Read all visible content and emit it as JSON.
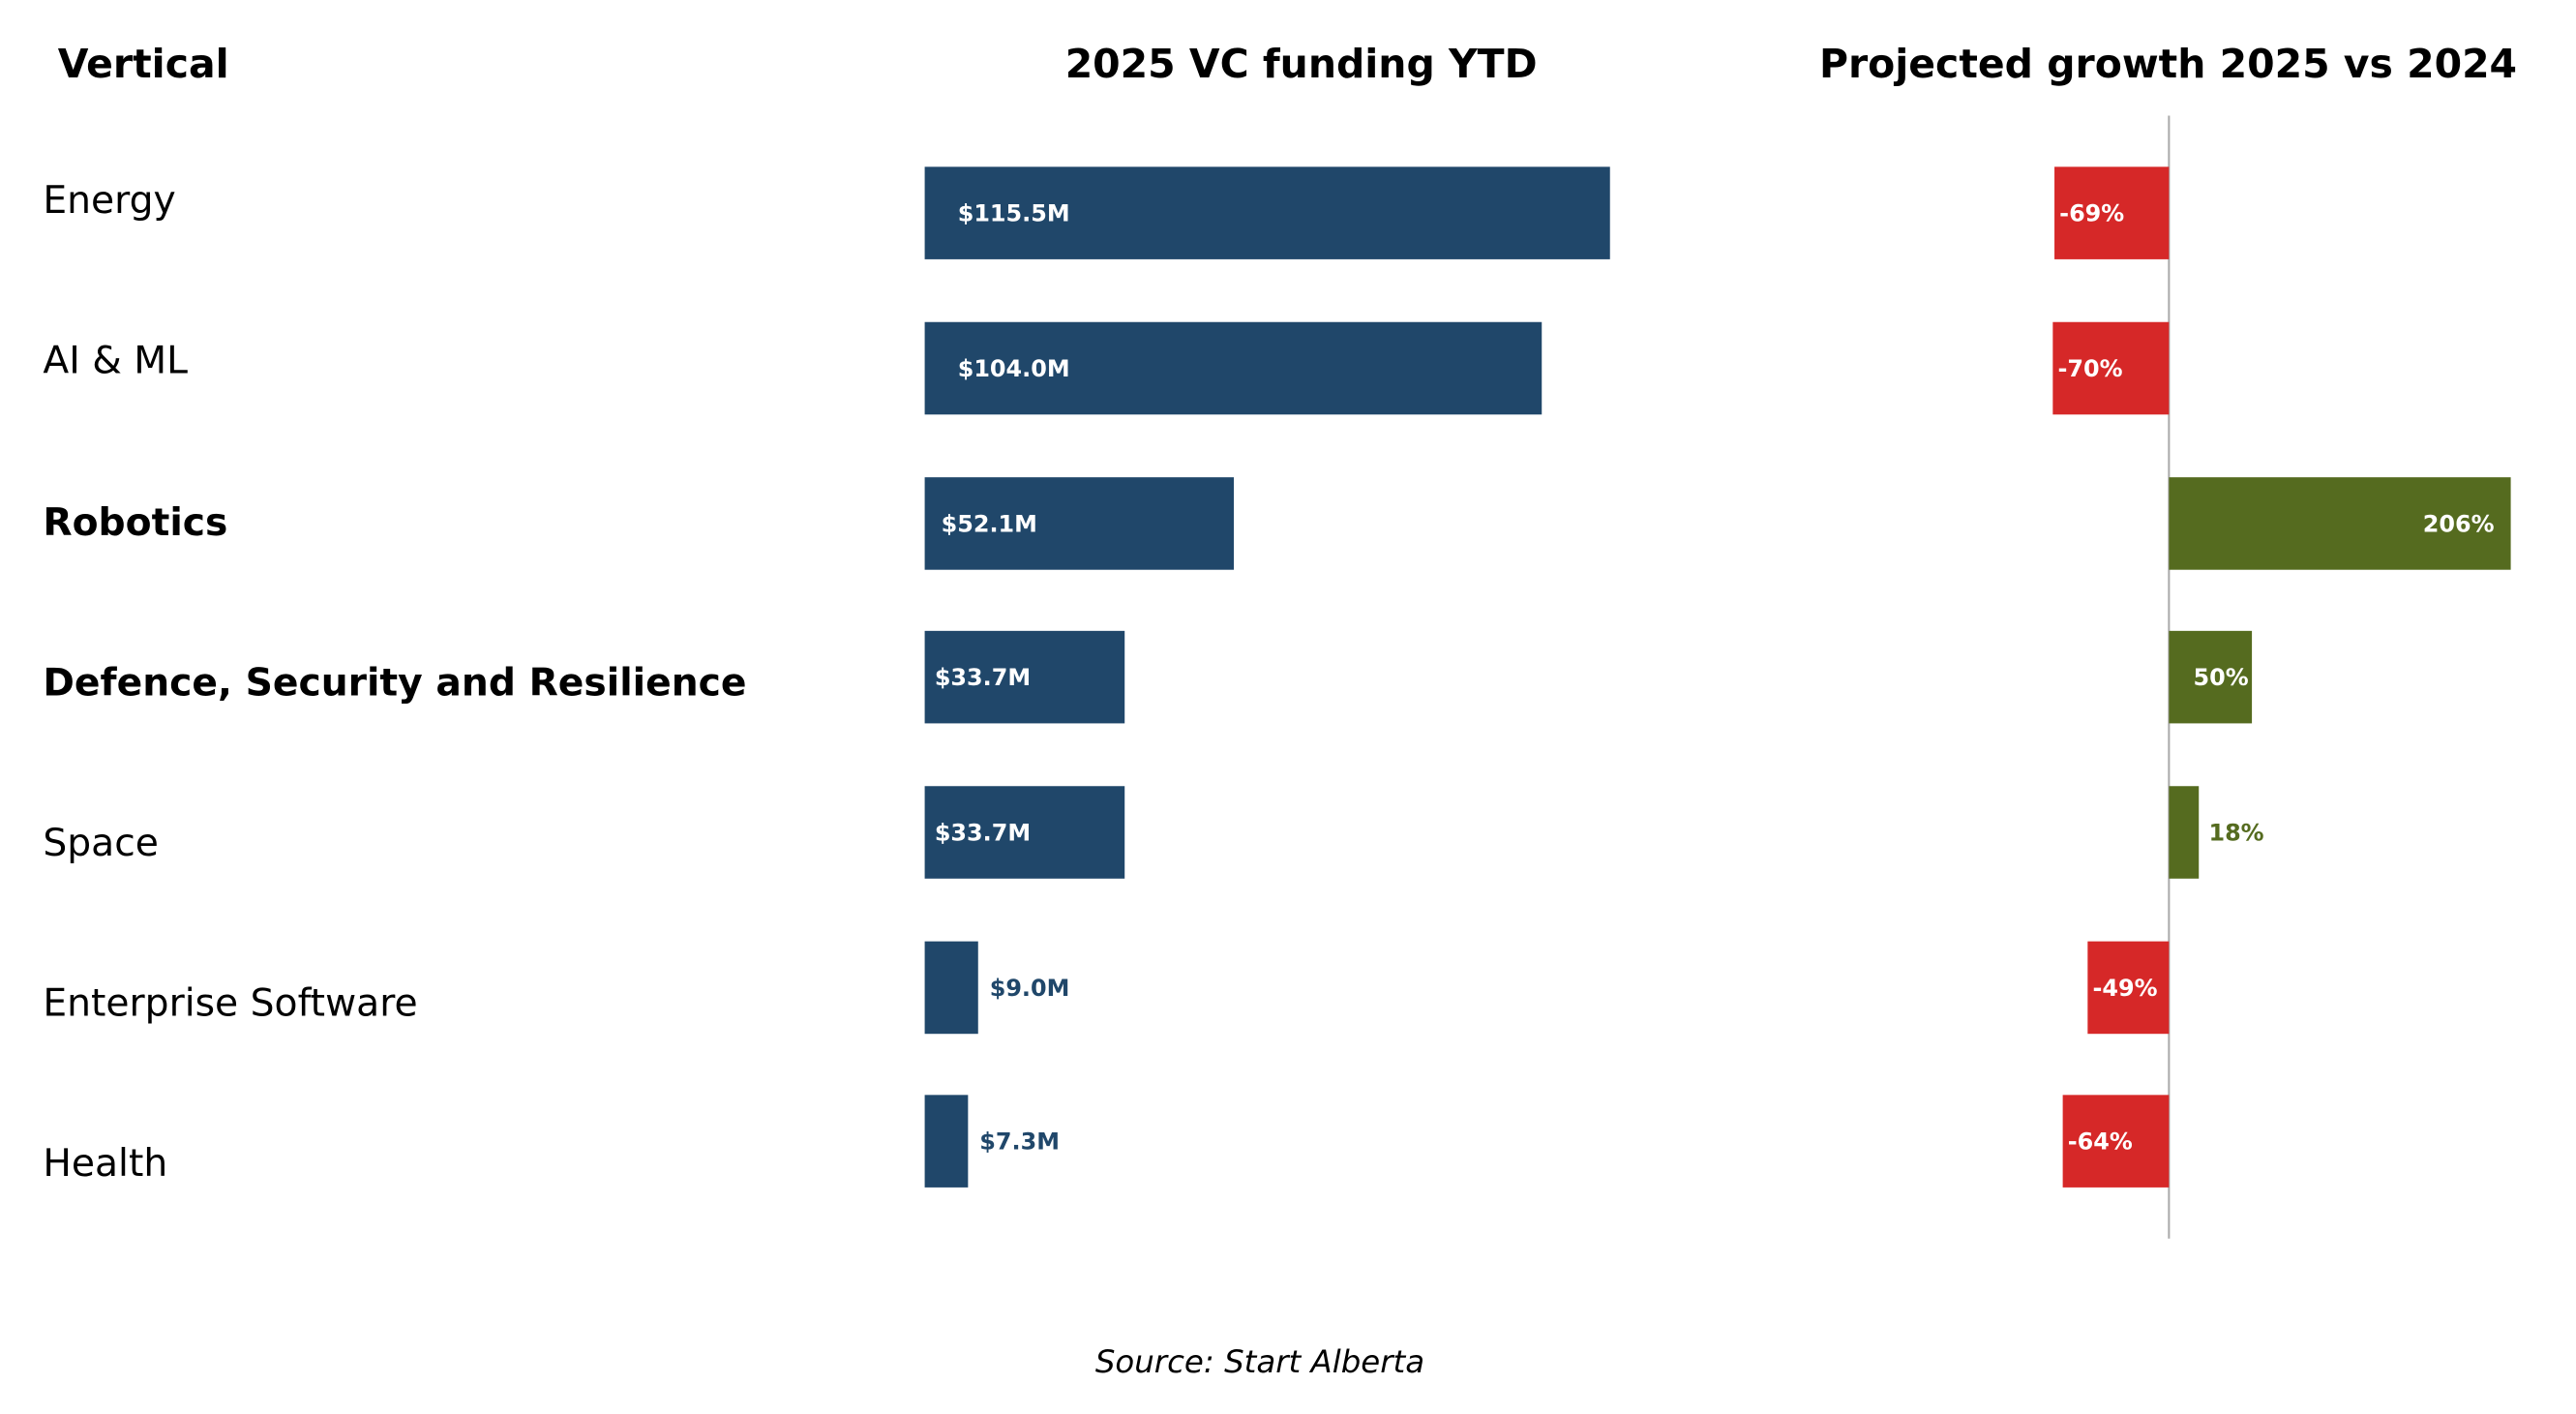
{
  "chart_data": {
    "type": "bar",
    "orientation": "horizontal",
    "headers": {
      "category": "Vertical",
      "funding": "2025 VC funding YTD",
      "growth": "Projected growth 2025 vs 2024"
    },
    "categories": [
      "Energy",
      "AI & ML",
      "Robotics",
      "Defence, Security and Resilience",
      "Space",
      "Enterprise Software",
      "Health"
    ],
    "bold_categories": [
      "Robotics",
      "Defence, Security and Resilience"
    ],
    "series": [
      {
        "name": "2025 VC funding YTD",
        "unit": "$M",
        "values": [
          115.5,
          104.0,
          52.1,
          33.7,
          33.7,
          9.0,
          7.3
        ],
        "labels": [
          "$115.5M",
          "$104.0M",
          "$52.1M",
          "$33.7M",
          "$33.7M",
          "$9.0M",
          "$7.3M"
        ],
        "color": "#20476a"
      },
      {
        "name": "Projected growth 2025 vs 2024",
        "unit": "%",
        "values": [
          -69,
          -70,
          206,
          50,
          18,
          -49,
          -64
        ],
        "labels": [
          "-69%",
          "-70%",
          "206%",
          "50%",
          "18%",
          "-49%",
          "-64%"
        ],
        "positive_color": "#556b1f",
        "negative_color": "#d62828"
      }
    ],
    "source": "Source: Start Alberta",
    "grid": false
  }
}
